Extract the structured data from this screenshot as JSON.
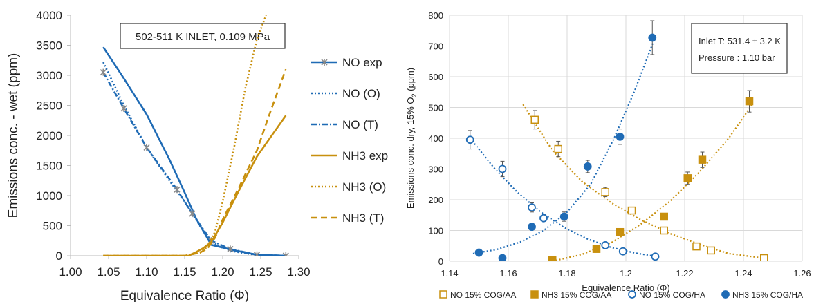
{
  "chart_data": [
    {
      "type": "line",
      "annotation": "502-511 K INLET, 0.109 MPa",
      "xlabel": "Equivalence Ratio (Φ)",
      "ylabel": "Emissions conc. - wet (ppm)",
      "xlim": [
        1.0,
        1.3
      ],
      "ylim": [
        0,
        4000
      ],
      "xticks": [
        "1.00",
        "1.05",
        "1.10",
        "1.15",
        "1.20",
        "1.25",
        "1.30"
      ],
      "yticks": [
        "0",
        "500",
        "1000",
        "1500",
        "2000",
        "2500",
        "3000",
        "3500",
        "4000"
      ],
      "grid": false,
      "legend_position": "right",
      "series": [
        {
          "name": "NO exp",
          "color": "#1f6bb5",
          "style": "solid",
          "x": [
            1.043,
            1.07,
            1.1,
            1.13,
            1.15,
            1.165,
            1.185,
            1.215,
            1.245,
            1.27,
            1.283
          ],
          "y": [
            3470,
            2950,
            2350,
            1600,
            1050,
            620,
            180,
            90,
            15,
            5,
            0
          ]
        },
        {
          "name": "NO (O)",
          "color": "#1f6bb5",
          "style": "dotted",
          "x": [
            1.043,
            1.07,
            1.1,
            1.13,
            1.15,
            1.17,
            1.185,
            1.2,
            1.215,
            1.245,
            1.283
          ],
          "y": [
            3220,
            2500,
            1800,
            1250,
            900,
            500,
            230,
            130,
            70,
            10,
            0
          ]
        },
        {
          "name": "NO (T)",
          "color": "#1f6bb5",
          "style": "dashdot-marker",
          "x": [
            1.043,
            1.07,
            1.1,
            1.14,
            1.16,
            1.185,
            1.21,
            1.245,
            1.283
          ],
          "y": [
            3050,
            2450,
            1800,
            1100,
            700,
            250,
            110,
            15,
            0
          ]
        },
        {
          "name": "NH3 exp",
          "color": "#c8900e",
          "style": "solid",
          "x": [
            1.043,
            1.14,
            1.155,
            1.165,
            1.175,
            1.185,
            1.2,
            1.22,
            1.245,
            1.283
          ],
          "y": [
            0,
            0,
            0,
            60,
            130,
            230,
            550,
            1050,
            1650,
            2330
          ]
        },
        {
          "name": "NH3 (O)",
          "color": "#c8900e",
          "style": "dotted",
          "x": [
            1.043,
            1.15,
            1.17,
            1.18,
            1.19,
            1.2,
            1.215,
            1.23,
            1.245,
            1.257
          ],
          "y": [
            0,
            0,
            50,
            150,
            400,
            900,
            1800,
            2800,
            3600,
            4000
          ]
        },
        {
          "name": "NH3 (T)",
          "color": "#c8900e",
          "style": "dashed",
          "x": [
            1.043,
            1.15,
            1.17,
            1.18,
            1.19,
            1.2,
            1.22,
            1.245,
            1.26,
            1.283
          ],
          "y": [
            0,
            0,
            50,
            120,
            300,
            600,
            1100,
            1750,
            2300,
            3100
          ]
        }
      ]
    },
    {
      "type": "scatter",
      "annotation_lines": [
        "Inlet T: 531.4 ± 3.2 K",
        "Pressure : 1.10 bar"
      ],
      "xlabel": "Equivalence Ratio (Φ)",
      "ylabel_parts": [
        "Emissions conc. dry, 15% O",
        "2",
        " (ppm)"
      ],
      "xlim": [
        1.14,
        1.26
      ],
      "ylim": [
        0,
        800
      ],
      "xticks": [
        "1.14",
        "1.16",
        "1.18",
        "1.2",
        "1.22",
        "1.24",
        "1.26"
      ],
      "yticks": [
        "0",
        "100",
        "200",
        "300",
        "400",
        "500",
        "600",
        "700",
        "800"
      ],
      "grid": true,
      "legend_position": "bottom",
      "series": [
        {
          "name": "NO 15% COG/AA",
          "color": "#c8900e",
          "marker": "square-open",
          "x": [
            1.169,
            1.177,
            1.193,
            1.202,
            1.213,
            1.224,
            1.229,
            1.247
          ],
          "y": [
            460,
            365,
            225,
            165,
            100,
            48,
            35,
            10
          ],
          "err": [
            30,
            25,
            15,
            10,
            8,
            6,
            6,
            5
          ],
          "fit_x": [
            1.165,
            1.175,
            1.185,
            1.195,
            1.205,
            1.215,
            1.225,
            1.235,
            1.247
          ],
          "fit_y": [
            510,
            360,
            260,
            190,
            135,
            90,
            55,
            25,
            10
          ]
        },
        {
          "name": "NH3 15% COG/AA",
          "color": "#c8900e",
          "marker": "square-filled",
          "x": [
            1.175,
            1.19,
            1.198,
            1.213,
            1.221,
            1.226,
            1.242
          ],
          "y": [
            3,
            40,
            95,
            145,
            270,
            330,
            520
          ],
          "err": [
            5,
            5,
            10,
            10,
            20,
            25,
            35
          ],
          "fit_x": [
            1.175,
            1.185,
            1.195,
            1.205,
            1.215,
            1.225,
            1.235,
            1.243
          ],
          "fit_y": [
            0,
            22,
            60,
            120,
            195,
            290,
            400,
            510
          ]
        },
        {
          "name": "NO 15% COG/HA",
          "color": "#1f6bb5",
          "marker": "circle-open",
          "x": [
            1.147,
            1.158,
            1.168,
            1.172,
            1.193,
            1.199,
            1.21
          ],
          "y": [
            395,
            300,
            175,
            140,
            52,
            32,
            15
          ],
          "err": [
            30,
            25,
            15,
            10,
            8,
            6,
            5
          ],
          "fit_x": [
            1.147,
            1.155,
            1.163,
            1.171,
            1.179,
            1.187,
            1.195,
            1.203,
            1.21
          ],
          "fit_y": [
            400,
            305,
            225,
            160,
            110,
            72,
            45,
            27,
            16
          ]
        },
        {
          "name": "NH3 15% COG/HA",
          "color": "#1f6bb5",
          "marker": "circle-filled",
          "x": [
            1.15,
            1.158,
            1.168,
            1.179,
            1.187,
            1.198,
            1.209
          ],
          "y": [
            28,
            10,
            112,
            145,
            308,
            405,
            727
          ],
          "err": [
            5,
            5,
            10,
            15,
            20,
            25,
            55
          ],
          "fit_x": [
            1.148,
            1.156,
            1.164,
            1.172,
            1.18,
            1.188,
            1.196,
            1.203,
            1.21
          ],
          "fit_y": [
            25,
            38,
            62,
            100,
            160,
            250,
            400,
            555,
            730
          ]
        }
      ]
    }
  ]
}
